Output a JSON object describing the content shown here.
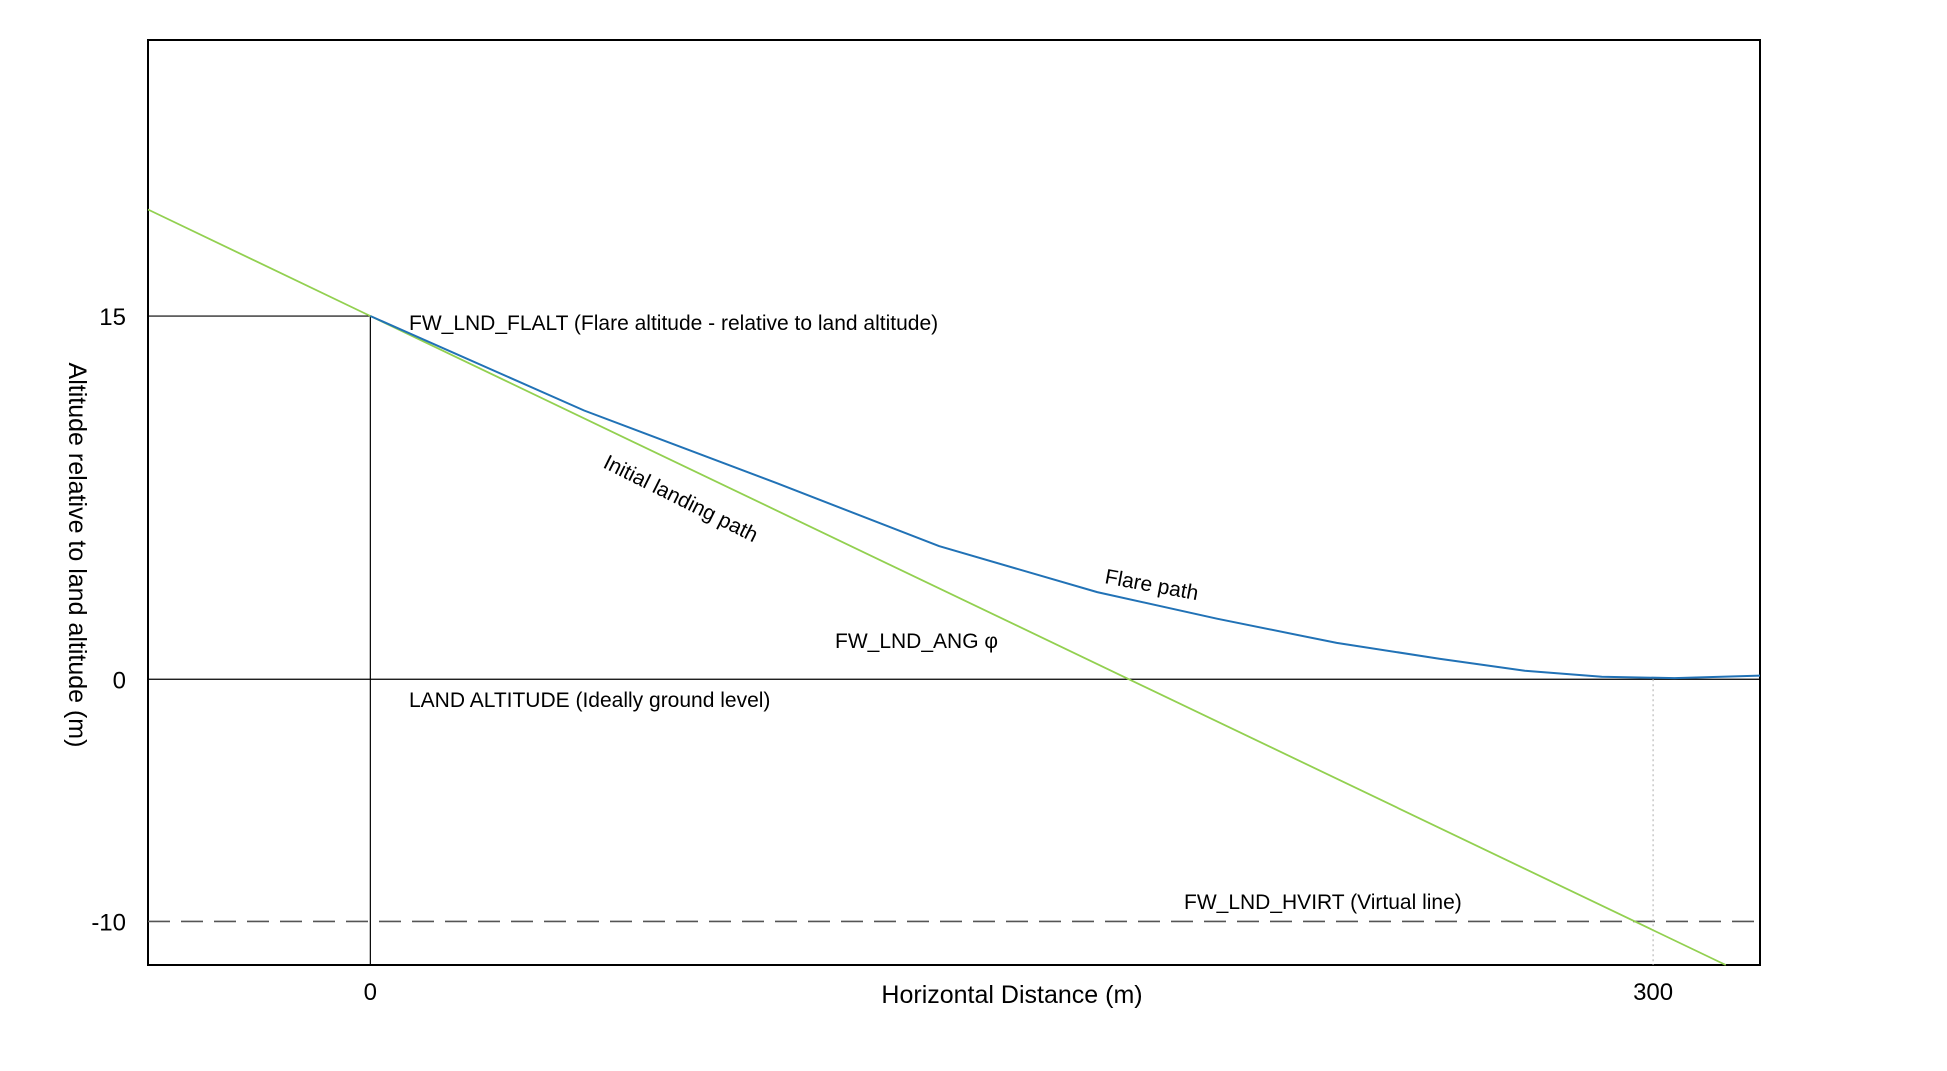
{
  "diagram": {
    "xlabel": "Horizontal Distance (m)",
    "ylabel": "Altitude relative to land altitude (m)",
    "x_ticks": [
      {
        "value": 0,
        "label": "0"
      },
      {
        "value": 300,
        "label": "300"
      }
    ],
    "y_ticks": [
      {
        "value": 15,
        "label": "15"
      },
      {
        "value": 0,
        "label": "0"
      },
      {
        "value": -10,
        "label": "-10"
      }
    ],
    "x_range": [
      -52,
      325
    ],
    "y_range": [
      -11.8,
      26.4
    ],
    "colors": {
      "initial_path": "#92d050",
      "flare_path": "#2172b6",
      "reference_lines": "#000000",
      "virtual_line": "#555555"
    },
    "labels": {
      "flare_altitude": "FW_LND_FLALT  (Flare altitude - relative to land altitude)",
      "initial_path": "Initial landing path",
      "flare_path": "Flare path",
      "landing_angle": "FW_LND_ANG φ",
      "land_altitude": "LAND ALTITUDE (Ideally ground level)",
      "virtual_line": "FW_LND_HVIRT (Virtual line)"
    },
    "initial_landing_path": {
      "points": [
        {
          "x": -52,
          "y": 19.4
        },
        {
          "x": 0,
          "y": 15
        },
        {
          "x": 317,
          "y": -11.8
        }
      ]
    },
    "flare_path": {
      "points": [
        {
          "x": 0,
          "y": 15
        },
        {
          "x": 50,
          "y": 11.1
        },
        {
          "x": 95,
          "y": 8.1
        },
        {
          "x": 133,
          "y": 5.5
        },
        {
          "x": 170,
          "y": 3.6
        },
        {
          "x": 198,
          "y": 2.5
        },
        {
          "x": 226,
          "y": 1.5
        },
        {
          "x": 250,
          "y": 0.85
        },
        {
          "x": 270,
          "y": 0.35
        },
        {
          "x": 288,
          "y": 0.1
        },
        {
          "x": 305,
          "y": 0.05
        },
        {
          "x": 325,
          "y": 0.15
        }
      ]
    },
    "flare_altitude_value": 15,
    "land_altitude_value": 0,
    "virtual_line_value": -10,
    "flare_end_x": 300
  }
}
